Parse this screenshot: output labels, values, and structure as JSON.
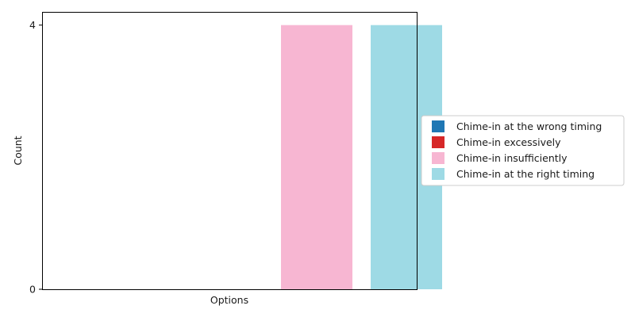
{
  "chart_data": {
    "type": "bar",
    "title": "",
    "xlabel": "Options",
    "ylabel": "Count",
    "ylim": [
      0,
      4.2
    ],
    "yticks": [
      0,
      4
    ],
    "grid": false,
    "legend_placement": "right",
    "series": [
      {
        "name": "Chime-in at the wrong timing",
        "value": 0,
        "color": "#1f77b4"
      },
      {
        "name": "Chime-in excessively",
        "value": 0,
        "color": "#d62728"
      },
      {
        "name": "Chime-in insufficiently",
        "value": 4,
        "color": "#f7b6d2"
      },
      {
        "name": "Chime-in at the right timing",
        "value": 4,
        "color": "#9edae5"
      }
    ]
  }
}
